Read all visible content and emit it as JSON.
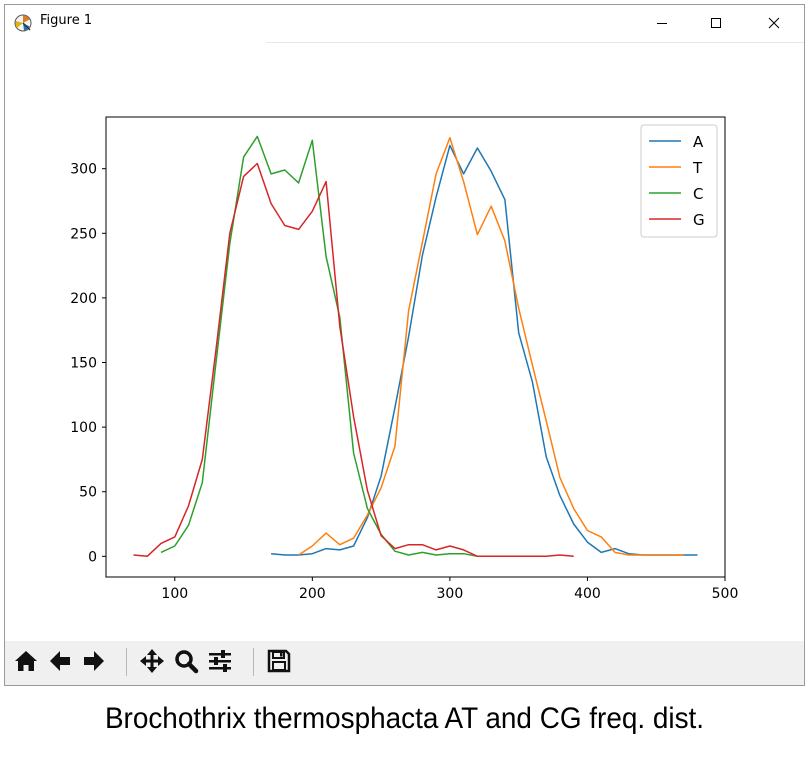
{
  "window": {
    "title": "Figure 1",
    "controls": {
      "minimize": "minimize",
      "maximize": "maximize",
      "close": "close"
    }
  },
  "toolbar": {
    "buttons": [
      {
        "name": "home",
        "icon": "home-icon"
      },
      {
        "name": "back",
        "icon": "arrow-left-icon"
      },
      {
        "name": "forward",
        "icon": "arrow-right-icon"
      },
      {
        "name": "pan",
        "icon": "move-icon"
      },
      {
        "name": "zoom",
        "icon": "magnifier-icon"
      },
      {
        "name": "configure-subplots",
        "icon": "sliders-icon"
      },
      {
        "name": "save",
        "icon": "floppy-disk-icon"
      }
    ]
  },
  "caption": "Brochothrix thermosphacta AT and CG freq. dist.",
  "chart_data": {
    "type": "line",
    "title": "",
    "xlabel": "",
    "ylabel": "",
    "xlim": [
      50,
      500
    ],
    "ylim": [
      -16,
      340
    ],
    "xticks": [
      100,
      200,
      300,
      400,
      500
    ],
    "yticks": [
      0,
      50,
      100,
      150,
      200,
      250,
      300
    ],
    "grid": false,
    "legend_position": "top-right",
    "series": [
      {
        "name": "A",
        "color": "#1f77b4",
        "x": [
          170,
          180,
          190,
          200,
          210,
          220,
          230,
          240,
          250,
          260,
          270,
          280,
          290,
          300,
          310,
          320,
          330,
          340,
          350,
          360,
          370,
          380,
          390,
          400,
          410,
          420,
          430,
          440,
          450,
          460,
          470,
          480
        ],
        "y": [
          2,
          1,
          1,
          2,
          6,
          5,
          8,
          30,
          62,
          115,
          170,
          233,
          278,
          318,
          296,
          316,
          298,
          276,
          173,
          135,
          77,
          47,
          25,
          11,
          3,
          6,
          2,
          1,
          1,
          1,
          1,
          1
        ]
      },
      {
        "name": "T",
        "color": "#ff7f0e",
        "x": [
          190,
          200,
          210,
          220,
          230,
          240,
          250,
          260,
          270,
          280,
          290,
          300,
          310,
          320,
          330,
          340,
          350,
          360,
          370,
          380,
          390,
          400,
          410,
          420,
          430,
          440,
          450,
          460,
          470
        ],
        "y": [
          1,
          8,
          18,
          9,
          14,
          32,
          53,
          85,
          190,
          243,
          296,
          324,
          290,
          249,
          271,
          244,
          192,
          148,
          105,
          61,
          37,
          20,
          15,
          3,
          1,
          1,
          1,
          1,
          1
        ]
      },
      {
        "name": "C",
        "color": "#2ca02c",
        "x": [
          90,
          100,
          110,
          120,
          130,
          140,
          150,
          160,
          170,
          180,
          190,
          200,
          210,
          220,
          230,
          240,
          250,
          260,
          270,
          280,
          290,
          300,
          310,
          320
        ],
        "y": [
          3,
          8,
          24,
          57,
          150,
          242,
          309,
          325,
          296,
          299,
          289,
          322,
          232,
          185,
          80,
          37,
          17,
          4,
          1,
          3,
          1,
          2,
          2,
          0
        ]
      },
      {
        "name": "G",
        "color": "#d62728",
        "x": [
          70,
          80,
          90,
          100,
          110,
          120,
          130,
          140,
          150,
          160,
          170,
          180,
          190,
          200,
          210,
          220,
          230,
          240,
          250,
          260,
          270,
          280,
          290,
          300,
          310,
          320,
          330,
          340,
          350,
          360,
          370,
          380,
          390
        ],
        "y": [
          1,
          0,
          10,
          15,
          39,
          75,
          160,
          250,
          294,
          304,
          273,
          256,
          253,
          267,
          290,
          178,
          108,
          51,
          16,
          6,
          9,
          9,
          5,
          8,
          5,
          0,
          0,
          0,
          0,
          0,
          0,
          1,
          0
        ]
      }
    ]
  }
}
